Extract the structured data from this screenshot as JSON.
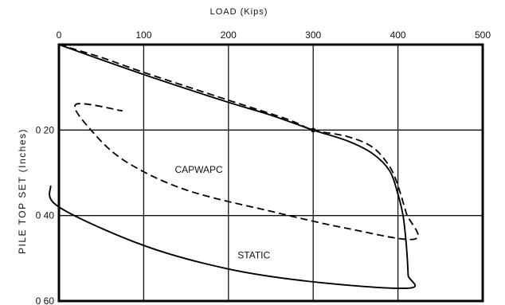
{
  "chart_data": {
    "type": "line",
    "title": "",
    "xlabel": "LOAD    (Kips)",
    "ylabel": "PILE   TOP   SET   (Inches)",
    "xlim": [
      0,
      500
    ],
    "ylim": [
      0,
      0.6
    ],
    "y_inverted": true,
    "x_axis_position": "top",
    "grid": true,
    "x_ticks": [
      "0",
      "100",
      "200",
      "300",
      "400",
      "500"
    ],
    "y_ticks": [
      {
        "value": 0.2,
        "label": "0 20"
      },
      {
        "value": 0.4,
        "label": "0 40"
      },
      {
        "value": 0.6,
        "label": "0 60"
      }
    ],
    "series": [
      {
        "name": "STATIC",
        "style": "solid",
        "label_at": [
          230,
          0.5
        ],
        "points": [
          [
            0,
            0
          ],
          [
            100,
            0.07
          ],
          [
            200,
            0.135
          ],
          [
            250,
            0.165
          ],
          [
            300,
            0.2
          ],
          [
            340,
            0.225
          ],
          [
            370,
            0.255
          ],
          [
            390,
            0.295
          ],
          [
            400,
            0.35
          ],
          [
            406,
            0.4
          ],
          [
            409,
            0.45
          ],
          [
            411,
            0.5
          ],
          [
            412,
            0.54
          ],
          [
            412,
            0.57
          ],
          [
            300,
            0.555
          ],
          [
            200,
            0.525
          ],
          [
            100,
            0.47
          ],
          [
            0,
            0.38
          ],
          [
            -10,
            0.33
          ]
        ]
      },
      {
        "name": "CAPWAPC",
        "style": "dashed",
        "label_at": [
          165,
          0.3
        ],
        "points": [
          [
            0,
            0
          ],
          [
            50,
            0.03
          ],
          [
            100,
            0.065
          ],
          [
            200,
            0.13
          ],
          [
            270,
            0.175
          ],
          [
            300,
            0.2
          ],
          [
            340,
            0.215
          ],
          [
            370,
            0.24
          ],
          [
            390,
            0.285
          ],
          [
            400,
            0.33
          ],
          [
            410,
            0.395
          ],
          [
            420,
            0.455
          ],
          [
            340,
            0.43
          ],
          [
            250,
            0.39
          ],
          [
            150,
            0.34
          ],
          [
            80,
            0.275
          ],
          [
            40,
            0.205
          ],
          [
            20,
            0.14
          ],
          [
            75,
            0.155
          ]
        ]
      }
    ]
  }
}
